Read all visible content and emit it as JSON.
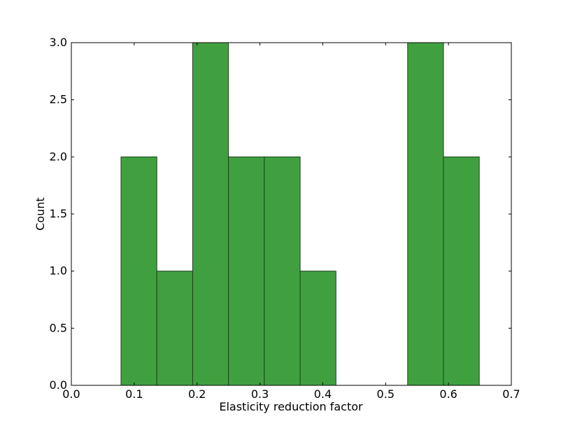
{
  "chart_data": {
    "type": "bar",
    "title": "",
    "xlabel": "Elasticity reduction factor",
    "ylabel": "Count",
    "xlim": [
      0.0,
      0.7
    ],
    "ylim": [
      0.0,
      3.0
    ],
    "xticks": [
      0.0,
      0.1,
      0.2,
      0.3,
      0.4,
      0.5,
      0.6,
      0.7
    ],
    "xtick_labels": [
      "0.0",
      "0.1",
      "0.2",
      "0.3",
      "0.4",
      "0.5",
      "0.6",
      "0.7"
    ],
    "yticks": [
      0.0,
      0.5,
      1.0,
      1.5,
      2.0,
      2.5,
      3.0
    ],
    "ytick_labels": [
      "0.0",
      "0.5",
      "1.0",
      "1.5",
      "2.0",
      "2.5",
      "3.0"
    ],
    "grid": false,
    "legend": "none",
    "bar_color": "#40a040",
    "edge_color": "#1f3f1f",
    "bins": [
      {
        "x0": 0.079,
        "x1": 0.136,
        "count": 2
      },
      {
        "x0": 0.136,
        "x1": 0.193,
        "count": 1
      },
      {
        "x0": 0.193,
        "x1": 0.25,
        "count": 3
      },
      {
        "x0": 0.25,
        "x1": 0.307,
        "count": 2
      },
      {
        "x0": 0.307,
        "x1": 0.364,
        "count": 2
      },
      {
        "x0": 0.364,
        "x1": 0.421,
        "count": 1
      },
      {
        "x0": 0.421,
        "x1": 0.478,
        "count": 0
      },
      {
        "x0": 0.478,
        "x1": 0.535,
        "count": 0
      },
      {
        "x0": 0.535,
        "x1": 0.592,
        "count": 3
      },
      {
        "x0": 0.592,
        "x1": 0.649,
        "count": 2
      }
    ]
  }
}
